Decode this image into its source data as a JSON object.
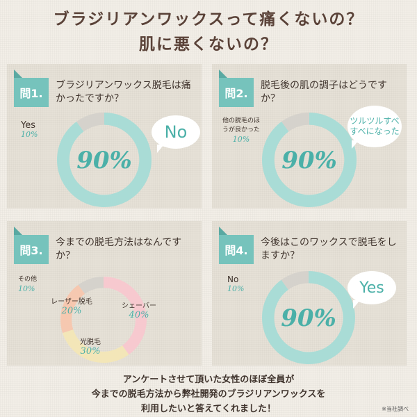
{
  "title_line1": "ブラジリアンワックスって痛くないの？",
  "title_line2": "肌に悪くないの？",
  "panels": [
    {
      "tab": "問1.",
      "question": "ブラジリアンワックス脱毛は痛かったですか？",
      "bubble": "No"
    },
    {
      "tab": "問2.",
      "question": "脱毛後の肌の調子はどうですか？",
      "bubble": "ツルツルすべすべになった"
    },
    {
      "tab": "問3.",
      "question": "今までの脱毛方法はなんですか？"
    },
    {
      "tab": "問4.",
      "question": "今後はこのワックスで脱毛をしますか？",
      "bubble": "Yes"
    }
  ],
  "footer": [
    "アンケートさせて頂いた女性のほぼ全員が",
    "今までの脱毛方法から弊社開発のブラジリアンワックスを",
    "利用したいと答えてくれました！"
  ],
  "note": "※当社調べ",
  "colors": {
    "teal": "#76c3bc",
    "gray": "#d5d2cc",
    "pink": "#f7c9cf",
    "peach": "#f6c8b0",
    "cream": "#f3e6b8"
  },
  "chart_data": [
    {
      "type": "pie",
      "categories": [
        "Yes",
        "No"
      ],
      "values": [
        10,
        90
      ],
      "labels": [
        "10%",
        "90%"
      ],
      "colors": [
        "#d5d2cc",
        "#a9dcd6"
      ]
    },
    {
      "type": "pie",
      "categories": [
        "他の脱毛のほうが良かった",
        "ツルツルすべすべになった"
      ],
      "values": [
        10,
        90
      ],
      "labels": [
        "10%",
        "90%"
      ],
      "colors": [
        "#d5d2cc",
        "#a9dcd6"
      ]
    },
    {
      "type": "pie",
      "categories": [
        "その他",
        "シェーバー",
        "光脱毛",
        "レーザー脱毛"
      ],
      "values": [
        10,
        40,
        30,
        20
      ],
      "labels": [
        "10%",
        "40%",
        "30%",
        "20%"
      ],
      "colors": [
        "#d5d2cc",
        "#f7c9cf",
        "#f3e6b8",
        "#f6c8b0"
      ]
    },
    {
      "type": "pie",
      "categories": [
        "No",
        "Yes"
      ],
      "values": [
        10,
        90
      ],
      "labels": [
        "10%",
        "90%"
      ],
      "colors": [
        "#d5d2cc",
        "#a9dcd6"
      ]
    }
  ]
}
